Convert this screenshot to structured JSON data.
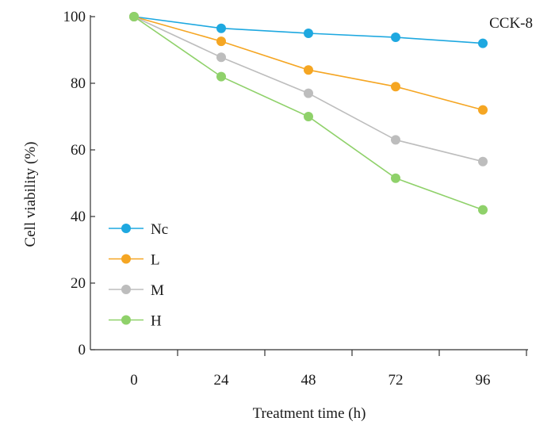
{
  "chart_data": {
    "type": "line",
    "title": "",
    "annotation": "CCK-8",
    "xlabel": "Treatment time (h)",
    "ylabel": "Cell viability (%)",
    "x": [
      0,
      24,
      48,
      72,
      96
    ],
    "xtick_labels": [
      "0",
      "24",
      "48",
      "72",
      "96"
    ],
    "yticks": [
      0,
      20,
      40,
      60,
      80,
      100
    ],
    "ytick_labels": [
      "0",
      "20",
      "40",
      "60",
      "80",
      "100"
    ],
    "ylim": [
      0,
      100
    ],
    "grid": false,
    "legend_position": "bottom-left",
    "series": [
      {
        "name": "Nc",
        "color": "#1ea8e0",
        "values": [
          100,
          96.5,
          95,
          93.8,
          92
        ]
      },
      {
        "name": "L",
        "color": "#f5a623",
        "values": [
          100,
          92.6,
          84,
          79,
          72
        ]
      },
      {
        "name": "M",
        "color": "#bdbdbd",
        "values": [
          100,
          87.8,
          77,
          63,
          56.5
        ]
      },
      {
        "name": "H",
        "color": "#8fd16a",
        "values": [
          100,
          82,
          70,
          51.5,
          42
        ]
      }
    ]
  }
}
